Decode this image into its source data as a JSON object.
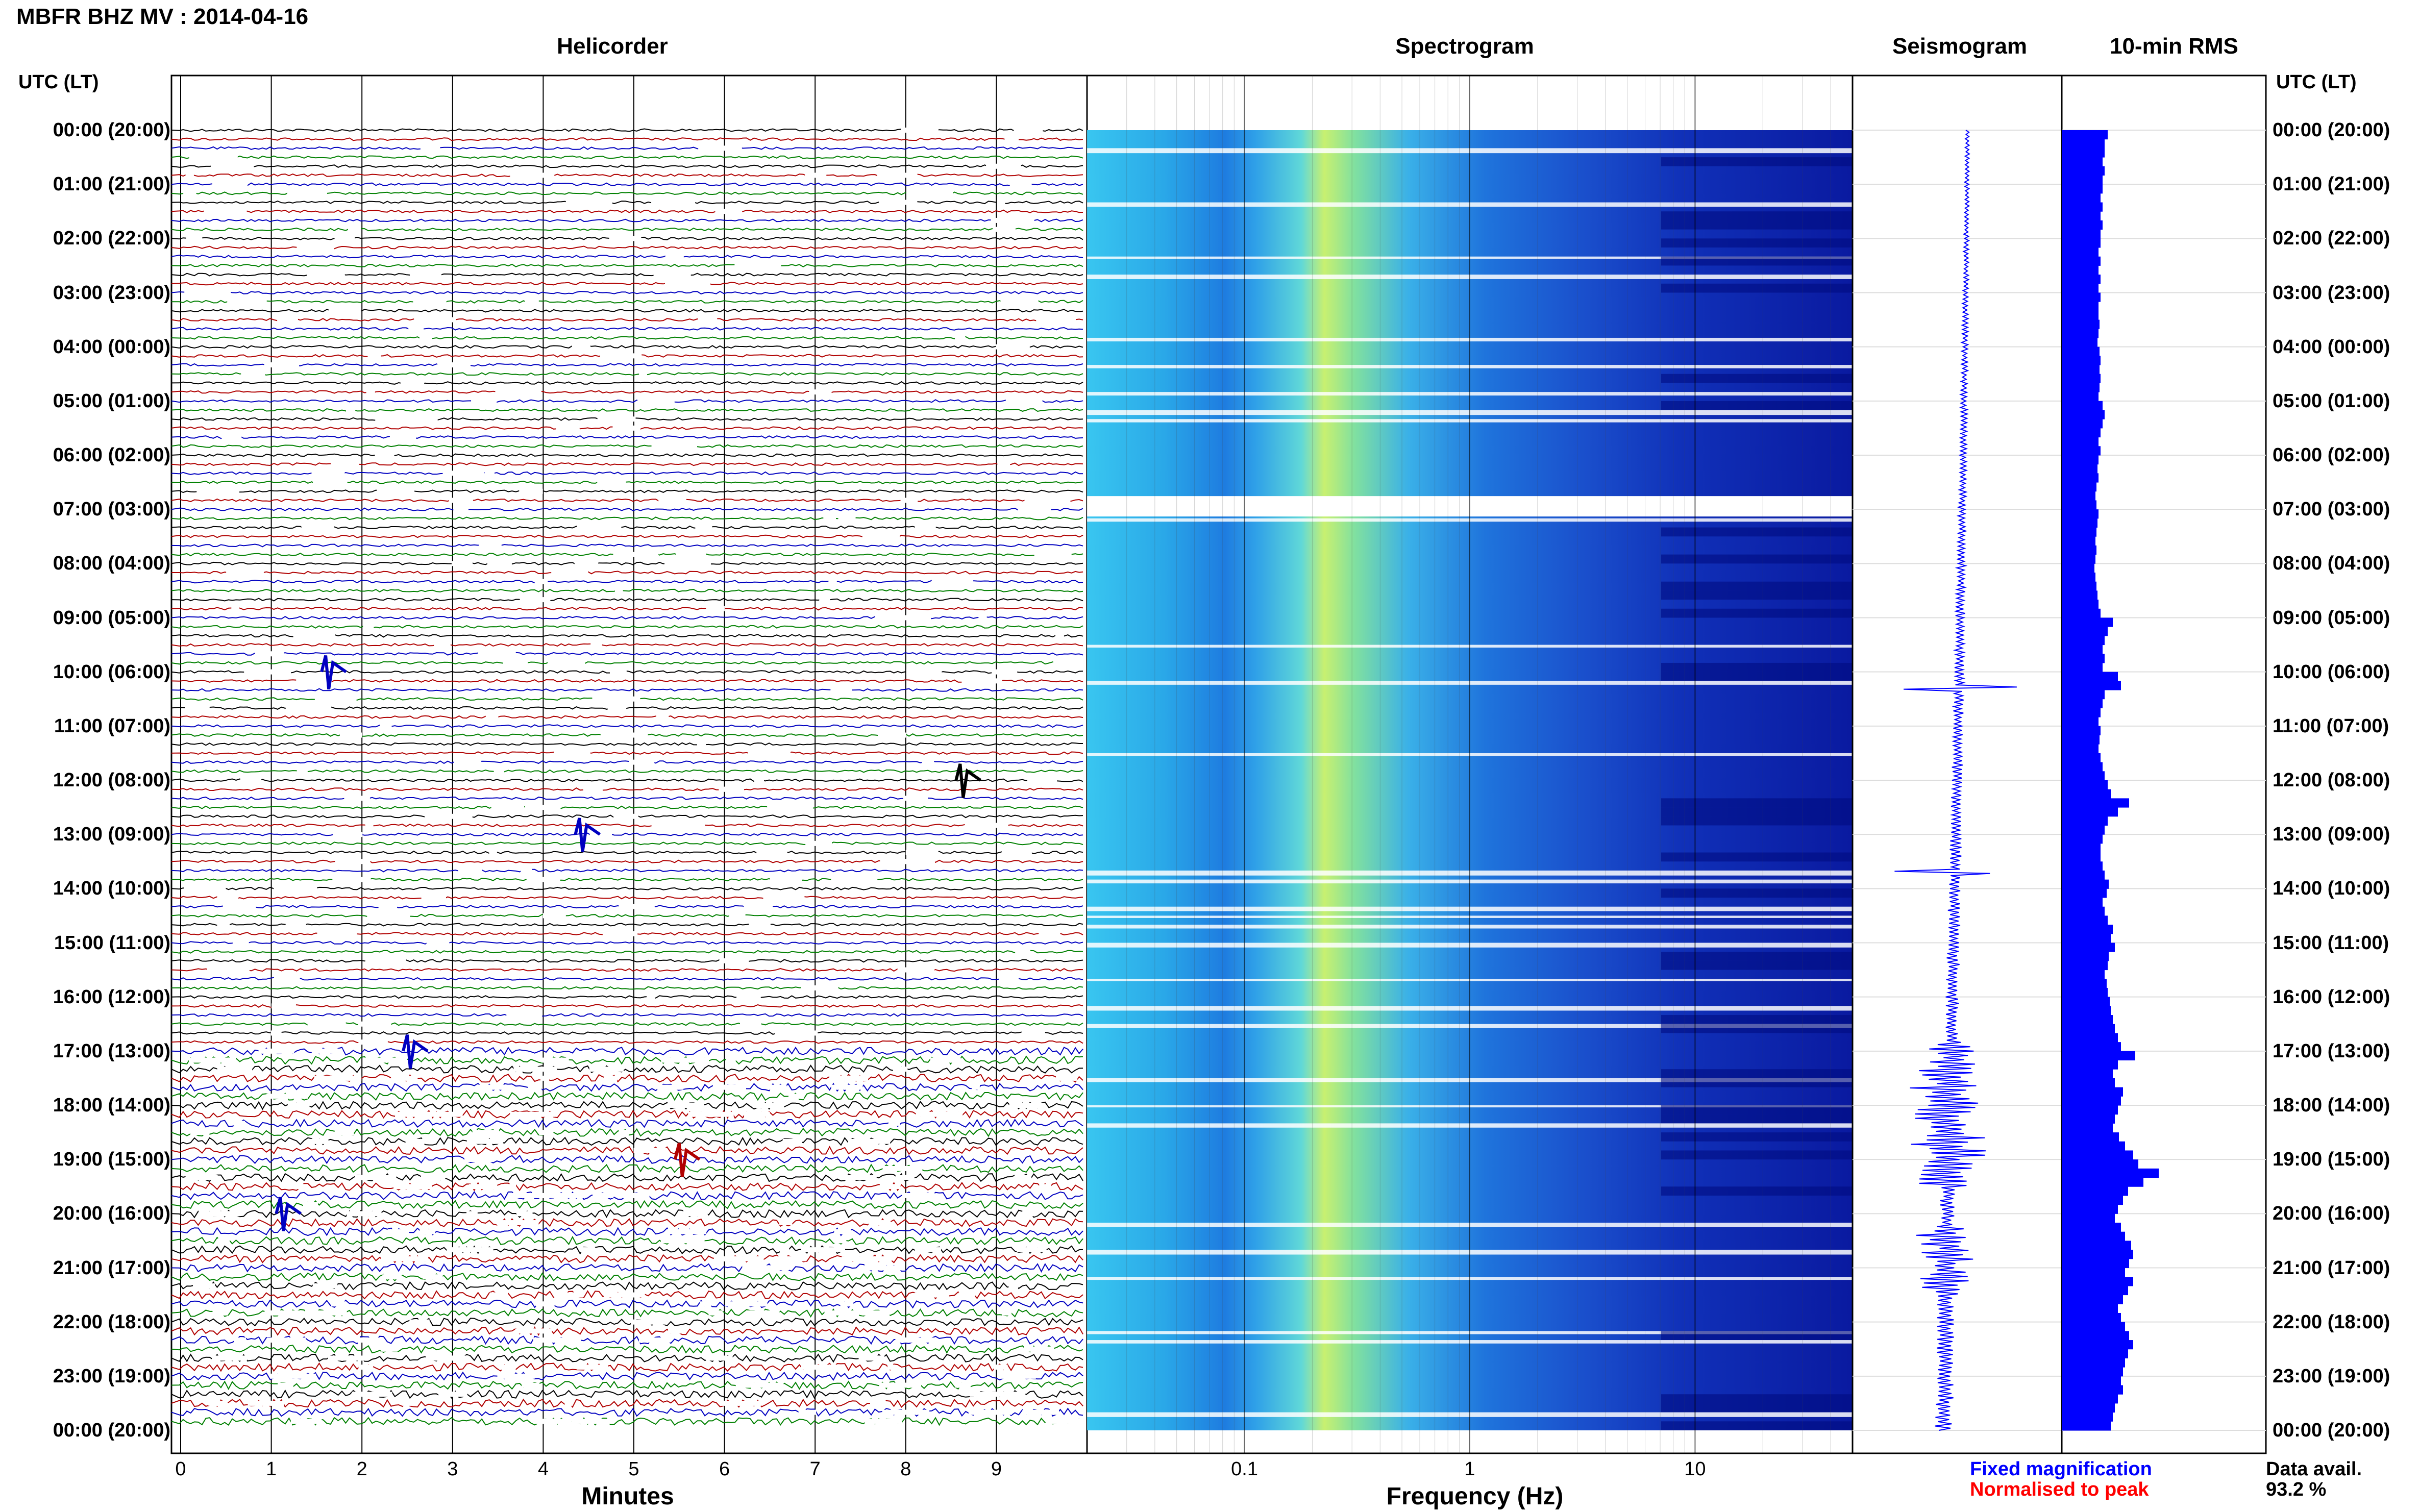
{
  "station_title": "MBFR BHZ MV : 2014-04-16",
  "panels": {
    "helicorder": "Helicorder",
    "spectrogram": "Spectrogram",
    "seismogram": "Seismogram",
    "rms": "10-min RMS"
  },
  "utc_header_left": "UTC (LT)",
  "utc_header_right": "UTC (LT)",
  "hour_labels": [
    "00:00 (20:00)",
    "01:00 (21:00)",
    "02:00 (22:00)",
    "03:00 (23:00)",
    "04:00 (00:00)",
    "05:00 (01:00)",
    "06:00 (02:00)",
    "07:00 (03:00)",
    "08:00 (04:00)",
    "09:00 (05:00)",
    "10:00 (06:00)",
    "11:00 (07:00)",
    "12:00 (08:00)",
    "13:00 (09:00)",
    "14:00 (10:00)",
    "15:00 (11:00)",
    "16:00 (12:00)",
    "17:00 (13:00)",
    "18:00 (14:00)",
    "19:00 (15:00)",
    "20:00 (16:00)",
    "21:00 (17:00)",
    "22:00 (18:00)",
    "23:00 (19:00)",
    "00:00 (20:00)"
  ],
  "x_axes": {
    "minutes_ticks": [
      "0",
      "1",
      "2",
      "3",
      "4",
      "5",
      "6",
      "7",
      "8",
      "9"
    ],
    "minutes_label": "Minutes",
    "frequency_ticks": [
      "0.1",
      "1",
      "10"
    ],
    "frequency_label": "Frequency (Hz)"
  },
  "legend": {
    "fixed": "Fixed magnification",
    "normalised": "Normalised to peak",
    "fixed_color": "#0000ff",
    "normalised_color": "#ff0000"
  },
  "data_availability": {
    "label": "Data avail.",
    "value": "93.2 %"
  },
  "colors": {
    "trace_cycle": [
      "#000000",
      "#b00000",
      "#0000c0",
      "#008000"
    ],
    "rms_bar": "#0000ff",
    "seismogram": "#0000ff"
  },
  "chart_data": [
    {
      "type": "line",
      "title": "Helicorder",
      "xlabel": "Minutes",
      "xlim": [
        0,
        10
      ],
      "rows_per_hour": 6,
      "hours": 24,
      "notable_events": [
        {
          "hour": 10,
          "minute": 1.6,
          "color": "blue"
        },
        {
          "hour": 12,
          "minute": 8.6,
          "color": "black"
        },
        {
          "hour": 13,
          "minute": 4.4,
          "color": "blue"
        },
        {
          "hour": 17,
          "minute": 2.5,
          "color": "blue"
        },
        {
          "hour": 19,
          "minute": 5.5,
          "color": "red"
        },
        {
          "hour": 20,
          "minute": 1.1,
          "color": "blue"
        }
      ]
    },
    {
      "type": "heatmap",
      "title": "Spectrogram",
      "xlabel": "Frequency (Hz)",
      "x_scale": "log",
      "xlim": [
        0.02,
        50
      ],
      "peak_frequency_hz": 0.25,
      "colormap": "jet"
    },
    {
      "type": "line",
      "title": "Seismogram",
      "hours": 24
    },
    {
      "type": "bar",
      "title": "10-min RMS",
      "orientation": "horizontal",
      "bins": 144,
      "relative_values": [
        0.45,
        0.42,
        0.42,
        0.4,
        0.42,
        0.4,
        0.4,
        0.38,
        0.4,
        0.38,
        0.4,
        0.38,
        0.38,
        0.36,
        0.38,
        0.36,
        0.38,
        0.36,
        0.38,
        0.36,
        0.36,
        0.37,
        0.36,
        0.35,
        0.37,
        0.38,
        0.37,
        0.38,
        0.37,
        0.36,
        0.4,
        0.42,
        0.4,
        0.38,
        0.36,
        0.38,
        0.36,
        0.35,
        0.36,
        0.34,
        0.33,
        0.34,
        0.36,
        0.35,
        0.34,
        0.33,
        0.34,
        0.33,
        0.32,
        0.33,
        0.34,
        0.35,
        0.36,
        0.38,
        0.5,
        0.45,
        0.42,
        0.4,
        0.42,
        0.4,
        0.55,
        0.58,
        0.42,
        0.4,
        0.38,
        0.36,
        0.38,
        0.37,
        0.36,
        0.38,
        0.4,
        0.42,
        0.45,
        0.48,
        0.66,
        0.55,
        0.45,
        0.42,
        0.4,
        0.38,
        0.38,
        0.4,
        0.42,
        0.46,
        0.44,
        0.4,
        0.42,
        0.45,
        0.5,
        0.48,
        0.52,
        0.46,
        0.45,
        0.42,
        0.44,
        0.45,
        0.47,
        0.48,
        0.5,
        0.52,
        0.55,
        0.58,
        0.72,
        0.55,
        0.5,
        0.52,
        0.6,
        0.58,
        0.55,
        0.52,
        0.5,
        0.56,
        0.62,
        0.7,
        0.75,
        0.95,
        0.8,
        0.65,
        0.6,
        0.55,
        0.52,
        0.58,
        0.62,
        0.68,
        0.7,
        0.66,
        0.62,
        0.7,
        0.65,
        0.6,
        0.55,
        0.58,
        0.62,
        0.66,
        0.7,
        0.65,
        0.62,
        0.6,
        0.58,
        0.6,
        0.55,
        0.52,
        0.5,
        0.48
      ]
    }
  ]
}
